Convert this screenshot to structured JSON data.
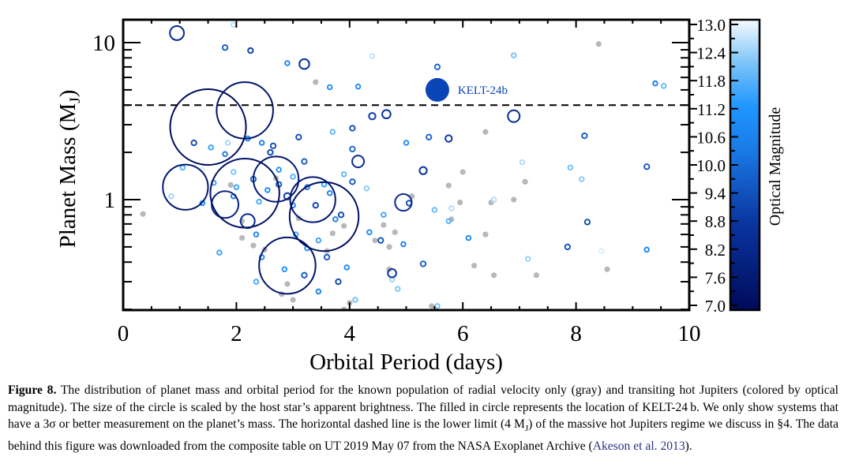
{
  "chart_data": {
    "type": "scatter",
    "title": "",
    "xlabel": "Orbital Period (days)",
    "ylabel": "Planet Mass (M_J)",
    "ylabel_main": "Planet Mass (M",
    "ylabel_sub": "J",
    "ylabel_close": ")",
    "xlim": [
      0,
      10
    ],
    "ylim": [
      0.2,
      14
    ],
    "yscale": "log",
    "xticks": [
      0,
      2,
      4,
      6,
      8,
      10
    ],
    "xtick_labels": [
      "0",
      "2",
      "4",
      "6",
      "8",
      "10"
    ],
    "yticks": [
      1,
      10
    ],
    "ytick_labels": [
      "1",
      "10"
    ],
    "grid": false,
    "threshold_line": {
      "y": 4,
      "style": "dashed",
      "label": "massive hot Jupiter lower limit"
    },
    "colorbar": {
      "label": "Optical Magnitude",
      "range": [
        7.0,
        13.0
      ],
      "ticks": [
        "7.0",
        "7.6",
        "8.2",
        "8.8",
        "9.4",
        "10.0",
        "10.6",
        "11.2",
        "11.8",
        "12.4",
        "13.0"
      ],
      "colors": {
        "low": "#000a5a",
        "mid_low": "#0a3fa8",
        "mid": "#1e90ff",
        "high": "#7cc4f7",
        "top": "#f2f9ff"
      }
    },
    "highlight": {
      "name": "KELT-24b",
      "label": "KELT-24b",
      "period": 5.55,
      "mass": 5.0,
      "vmag": 8.3,
      "color": "#0a45b8"
    },
    "series": [
      {
        "name": "Radial velocity only",
        "color": "#b8b8b8",
        "points": [
          [
            0.35,
            0.81
          ],
          [
            3.4,
            5.6
          ],
          [
            8.4,
            9.8
          ],
          [
            4.7,
            0.5
          ],
          [
            5.1,
            1.05
          ],
          [
            6.4,
            0.6
          ],
          [
            6.4,
            2.7
          ],
          [
            6.0,
            1.5
          ],
          [
            4.7,
            0.36
          ],
          [
            7.1,
            1.3
          ],
          [
            5.8,
            0.75
          ],
          [
            6.5,
            0.96
          ],
          [
            6.9,
            1.0
          ],
          [
            5.95,
            0.96
          ],
          [
            2.9,
            0.29
          ],
          [
            2.8,
            0.25
          ],
          [
            3.0,
            0.23
          ],
          [
            2.1,
            0.73
          ],
          [
            2.1,
            0.57
          ],
          [
            2.3,
            0.51
          ],
          [
            4.0,
            0.22
          ],
          [
            3.9,
            0.2
          ],
          [
            4.8,
            0.62
          ],
          [
            4.45,
            0.55
          ],
          [
            1.9,
            1.24
          ],
          [
            2.7,
            1.37
          ],
          [
            3.7,
            0.61
          ],
          [
            4.6,
            0.69
          ],
          [
            6.2,
            0.38
          ],
          [
            3.6,
            0.47
          ],
          [
            3.1,
            0.76
          ],
          [
            2.5,
            0.48
          ],
          [
            8.55,
            0.36
          ],
          [
            5.45,
            0.21
          ],
          [
            6.55,
            0.33
          ],
          [
            7.3,
            0.33
          ],
          [
            5.75,
            1.23
          ],
          [
            3.9,
            0.68
          ]
        ]
      },
      {
        "name": "Transiting",
        "points": [
          {
            "p": 0.95,
            "m": 11.5,
            "v": 8.4
          },
          {
            "p": 1.8,
            "m": 9.3,
            "v": 9.6
          },
          {
            "p": 2.25,
            "m": 8.9,
            "v": 9.0
          },
          {
            "p": 3.2,
            "m": 7.3,
            "v": 8.6
          },
          {
            "p": 1.95,
            "m": 13.0,
            "v": 12.5
          },
          {
            "p": 2.9,
            "m": 7.4,
            "v": 10.6
          },
          {
            "p": 3.65,
            "m": 5.2,
            "v": 10.8
          },
          {
            "p": 4.15,
            "m": 5.25,
            "v": 10.8
          },
          {
            "p": 4.4,
            "m": 8.2,
            "v": 12.6
          },
          {
            "p": 4.4,
            "m": 3.4,
            "v": 8.9
          },
          {
            "p": 5.55,
            "m": 7.0,
            "v": 9.9
          },
          {
            "p": 6.9,
            "m": 8.3,
            "v": 12.0
          },
          {
            "p": 9.4,
            "m": 5.5,
            "v": 10.4
          },
          {
            "p": 9.55,
            "m": 5.3,
            "v": 11.9
          },
          {
            "p": 1.5,
            "m": 2.9,
            "v": 7.1
          },
          {
            "p": 2.15,
            "m": 3.7,
            "v": 7.4
          },
          {
            "p": 6.9,
            "m": 3.4,
            "v": 8.5
          },
          {
            "p": 1.1,
            "m": 1.2,
            "v": 7.6
          },
          {
            "p": 1.8,
            "m": 0.93,
            "v": 8.0
          },
          {
            "p": 2.15,
            "m": 1.1,
            "v": 7.2
          },
          {
            "p": 2.7,
            "m": 1.35,
            "v": 7.6
          },
          {
            "p": 3.35,
            "m": 1.0,
            "v": 7.6
          },
          {
            "p": 3.55,
            "m": 0.78,
            "v": 7.2
          },
          {
            "p": 2.9,
            "m": 0.38,
            "v": 7.4
          },
          {
            "p": 4.15,
            "m": 1.75,
            "v": 8.5
          },
          {
            "p": 5.3,
            "m": 1.53,
            "v": 8.8
          },
          {
            "p": 4.95,
            "m": 0.96,
            "v": 8.3
          },
          {
            "p": 5.75,
            "m": 2.45,
            "v": 8.9
          },
          {
            "p": 8.15,
            "m": 2.55,
            "v": 9.6
          },
          {
            "p": 3.1,
            "m": 2.5,
            "v": 9.3
          },
          {
            "p": 2.2,
            "m": 0.73,
            "v": 8.4
          },
          {
            "p": 1.25,
            "m": 2.3,
            "v": 9.2
          },
          {
            "p": 1.55,
            "m": 2.15,
            "v": 11.4
          },
          {
            "p": 1.05,
            "m": 1.6,
            "v": 11.7
          },
          {
            "p": 1.85,
            "m": 2.3,
            "v": 12.4
          },
          {
            "p": 2.65,
            "m": 2.2,
            "v": 9.3
          },
          {
            "p": 2.6,
            "m": 2.0,
            "v": 9.1
          },
          {
            "p": 2.45,
            "m": 2.3,
            "v": 10.4
          },
          {
            "p": 1.8,
            "m": 1.95,
            "v": 10.2
          },
          {
            "p": 2.2,
            "m": 2.45,
            "v": 10.6
          },
          {
            "p": 3.2,
            "m": 1.75,
            "v": 9.6
          },
          {
            "p": 3.7,
            "m": 2.7,
            "v": 11.8
          },
          {
            "p": 4.05,
            "m": 2.1,
            "v": 9.9
          },
          {
            "p": 4.05,
            "m": 2.85,
            "v": 9.3
          },
          {
            "p": 4.65,
            "m": 3.5,
            "v": 8.7
          },
          {
            "p": 5.0,
            "m": 2.3,
            "v": 10.8
          },
          {
            "p": 5.4,
            "m": 2.5,
            "v": 9.8
          },
          {
            "p": 2.9,
            "m": 1.05,
            "v": 8.9
          },
          {
            "p": 3.0,
            "m": 0.92,
            "v": 10.5
          },
          {
            "p": 3.4,
            "m": 0.92,
            "v": 9.1
          },
          {
            "p": 3.65,
            "m": 1.1,
            "v": 10.4
          },
          {
            "p": 3.75,
            "m": 0.75,
            "v": 10.3
          },
          {
            "p": 3.85,
            "m": 0.8,
            "v": 9.2
          },
          {
            "p": 4.05,
            "m": 1.3,
            "v": 9.6
          },
          {
            "p": 4.35,
            "m": 0.62,
            "v": 10.9
          },
          {
            "p": 4.55,
            "m": 0.55,
            "v": 9.4
          },
          {
            "p": 4.75,
            "m": 0.34,
            "v": 8.7
          },
          {
            "p": 4.95,
            "m": 0.52,
            "v": 10.4
          },
          {
            "p": 5.3,
            "m": 0.39,
            "v": 9.6
          },
          {
            "p": 5.05,
            "m": 0.95,
            "v": 9.3
          },
          {
            "p": 5.5,
            "m": 0.86,
            "v": 11.9
          },
          {
            "p": 5.8,
            "m": 0.88,
            "v": 12.5
          },
          {
            "p": 5.75,
            "m": 0.73,
            "v": 11.7
          },
          {
            "p": 6.1,
            "m": 0.57,
            "v": 10.6
          },
          {
            "p": 7.15,
            "m": 0.42,
            "v": 12.3
          },
          {
            "p": 7.85,
            "m": 0.5,
            "v": 9.4
          },
          {
            "p": 8.2,
            "m": 0.72,
            "v": 9.3
          },
          {
            "p": 8.45,
            "m": 0.47,
            "v": 12.8
          },
          {
            "p": 9.25,
            "m": 0.48,
            "v": 10.8
          },
          {
            "p": 7.9,
            "m": 1.6,
            "v": 12.0
          },
          {
            "p": 8.1,
            "m": 1.35,
            "v": 12.2
          },
          {
            "p": 9.25,
            "m": 1.62,
            "v": 9.6
          },
          {
            "p": 7.05,
            "m": 1.73,
            "v": 12.5
          },
          {
            "p": 6.55,
            "m": 1.0,
            "v": 12.5
          },
          {
            "p": 2.35,
            "m": 0.6,
            "v": 10.5
          },
          {
            "p": 1.7,
            "m": 0.46,
            "v": 11.4
          },
          {
            "p": 2.45,
            "m": 0.43,
            "v": 10.8
          },
          {
            "p": 3.05,
            "m": 0.6,
            "v": 11.4
          },
          {
            "p": 3.25,
            "m": 0.49,
            "v": 10.9
          },
          {
            "p": 3.45,
            "m": 0.55,
            "v": 11.5
          },
          {
            "p": 3.6,
            "m": 0.43,
            "v": 9.6
          },
          {
            "p": 3.95,
            "m": 0.37,
            "v": 10.8
          },
          {
            "p": 3.2,
            "m": 0.33,
            "v": 9.6
          },
          {
            "p": 3.8,
            "m": 0.3,
            "v": 9.2
          },
          {
            "p": 4.1,
            "m": 0.23,
            "v": 12.0
          },
          {
            "p": 4.75,
            "m": 0.31,
            "v": 12.3
          },
          {
            "p": 5.55,
            "m": 0.21,
            "v": 12.0
          },
          {
            "p": 2.35,
            "m": 0.3,
            "v": 11.6
          },
          {
            "p": 2.85,
            "m": 0.36,
            "v": 11.2
          },
          {
            "p": 3.45,
            "m": 0.26,
            "v": 10.6
          },
          {
            "p": 4.85,
            "m": 0.27,
            "v": 12.1
          },
          {
            "p": 2.55,
            "m": 1.15,
            "v": 10.9
          },
          {
            "p": 2.75,
            "m": 1.25,
            "v": 9.5
          },
          {
            "p": 2.4,
            "m": 0.97,
            "v": 11.6
          },
          {
            "p": 2.0,
            "m": 1.2,
            "v": 11.4
          },
          {
            "p": 1.6,
            "m": 1.28,
            "v": 11.5
          },
          {
            "p": 0.85,
            "m": 1.05,
            "v": 12.4
          },
          {
            "p": 1.4,
            "m": 0.95,
            "v": 10.8
          },
          {
            "p": 1.95,
            "m": 1.05,
            "v": 10.1
          },
          {
            "p": 1.4,
            "m": 1.55,
            "v": 12.8
          },
          {
            "p": 1.95,
            "m": 1.5,
            "v": 12.1
          },
          {
            "p": 2.75,
            "m": 1.55,
            "v": 11.0
          },
          {
            "p": 3.55,
            "m": 1.25,
            "v": 11.3
          },
          {
            "p": 3.9,
            "m": 1.45,
            "v": 11.8
          },
          {
            "p": 4.3,
            "m": 1.18,
            "v": 12.2
          },
          {
            "p": 4.6,
            "m": 0.8,
            "v": 11.5
          },
          {
            "p": 3.25,
            "m": 1.2,
            "v": 10.0
          },
          {
            "p": 3.0,
            "m": 1.4,
            "v": 11.7
          },
          {
            "p": 2.3,
            "m": 1.35,
            "v": 9.7
          }
        ]
      }
    ]
  },
  "caption": {
    "label": "Figure 8.",
    "text": "The distribution of planet mass and orbital period for the known population of radial velocity only (gray) and transiting hot Jupiters (colored by optical magnitude). The size of the circle is scaled by the host star’s apparent brightness. The filled in circle represents the location of KELT-24 b. We only show systems that have a 3σ or better measurement on the planet’s mass. The horizontal dashed line is the lower limit (4 M",
    "sub": "J",
    "text2": ") of the massive hot Jupiters regime we discuss in §4. The data behind this figure was downloaded from the composite table on UT 2019 May 07 from the NASA Exoplanet Archive (",
    "citation": "Akeson et al. 2013",
    "end": ")."
  }
}
